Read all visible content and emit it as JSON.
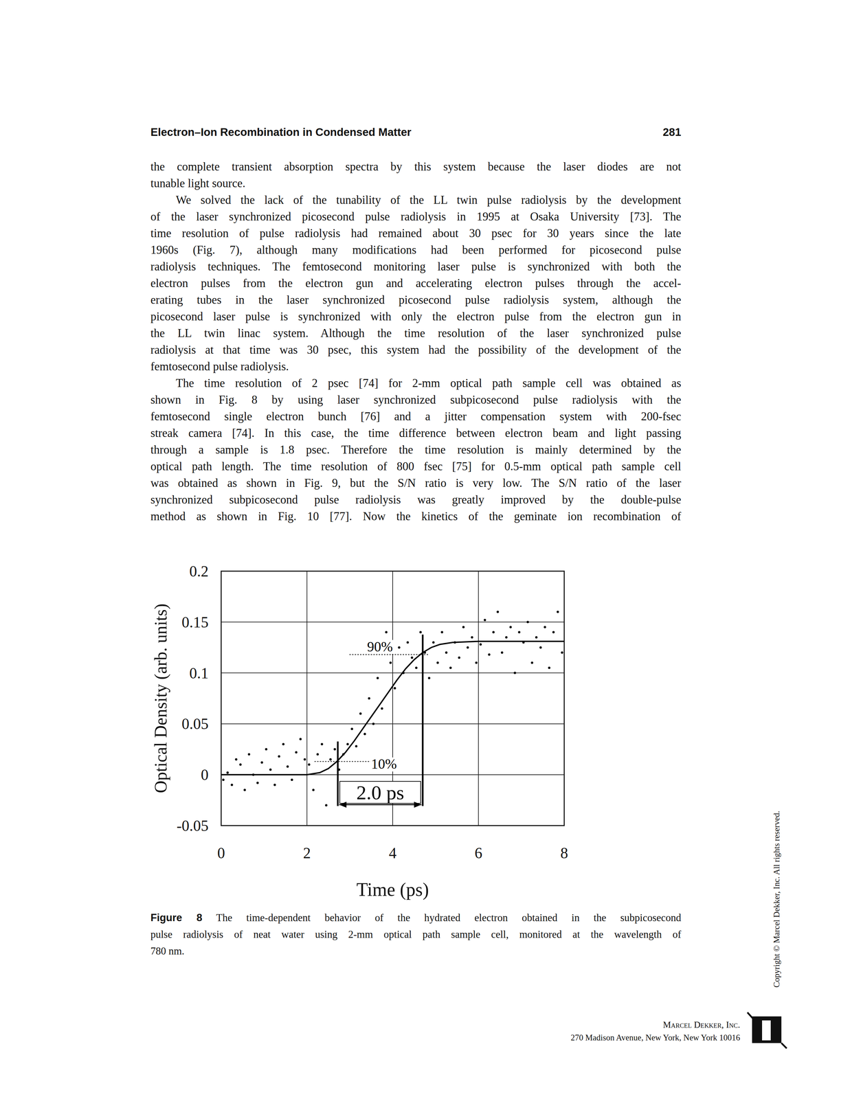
{
  "header": {
    "title": "Electron–Ion Recombination in Condensed Matter",
    "page_number": "281"
  },
  "body": {
    "continuation": [
      "the complete transient absorption spectra by this system because the laser diodes are not",
      "tunable light source."
    ],
    "paragraphs": [
      [
        "We solved the lack of the tunability of the LL twin pulse radiolysis by the development",
        "of the laser synchronized picosecond pulse radiolysis in 1995 at Osaka University [73]. The",
        "time resolution of pulse radiolysis had remained about 30 psec for 30 years since the late",
        "1960s (Fig. 7), although many modifications had been performed for picosecond pulse",
        "radiolysis techniques. The femtosecond monitoring laser pulse is synchronized with both the",
        "electron pulses from the electron gun and accelerating electron pulses through the accel-",
        "erating tubes in the laser synchronized picosecond pulse radiolysis system, although the",
        "picosecond laser pulse is synchronized with only the electron pulse from the electron gun in",
        "the LL twin linac system. Although the time resolution of the laser synchronized pulse",
        "radiolysis at that time was 30 psec, this system had the possibility of the development of the",
        "femtosecond pulse radiolysis."
      ],
      [
        "The time resolution of 2 psec [74] for 2-mm optical path sample cell was obtained as",
        "shown in Fig. 8 by using laser synchronized subpicosecond pulse radiolysis with the",
        "femtosecond single electron bunch [76] and a jitter compensation system with 200-fsec",
        "streak camera [74]. In this case, the time difference between electron beam and light passing",
        "through a sample is 1.8 psec. Therefore the time resolution is mainly determined by the",
        "optical path length. The time resolution of 800 fsec [75] for 0.5-mm optical path sample cell",
        "was obtained as shown in Fig. 9, but the S/N ratio is very low. The S/N ratio of the laser",
        "synchronized subpicosecond pulse radiolysis was greatly improved by the double-pulse",
        "method as shown in Fig. 10 [77]. Now the kinetics of the geminate ion recombination of"
      ]
    ]
  },
  "chart_data": {
    "type": "scatter",
    "xlabel": "Time (ps)",
    "ylabel": "Optical Density (arb. units)",
    "xlim": [
      0,
      8
    ],
    "ylim": [
      -0.05,
      0.2
    ],
    "xticks": [
      0,
      2,
      4,
      6,
      8
    ],
    "yticks": [
      -0.05,
      0,
      0.05,
      0.1,
      0.15,
      0.2
    ],
    "grid": true,
    "series": [
      {
        "type": "scatter",
        "color": "#000000",
        "marker": "dot",
        "x": [
          0.05,
          0.15,
          0.25,
          0.35,
          0.45,
          0.55,
          0.65,
          0.75,
          0.85,
          0.95,
          1.05,
          1.15,
          1.25,
          1.35,
          1.45,
          1.55,
          1.65,
          1.75,
          1.85,
          1.95,
          2.05,
          2.15,
          2.25,
          2.35,
          2.45,
          2.55,
          2.65,
          2.75,
          2.85,
          2.95,
          3.05,
          3.15,
          3.25,
          3.35,
          3.45,
          3.55,
          3.65,
          3.75,
          3.85,
          3.95,
          4.05,
          4.15,
          4.25,
          4.35,
          4.45,
          4.55,
          4.65,
          4.75,
          4.85,
          4.95,
          5.05,
          5.15,
          5.25,
          5.35,
          5.45,
          5.55,
          5.65,
          5.75,
          5.85,
          5.95,
          6.05,
          6.15,
          6.25,
          6.35,
          6.45,
          6.55,
          6.65,
          6.75,
          6.85,
          6.95,
          7.05,
          7.15,
          7.25,
          7.35,
          7.45,
          7.55,
          7.65,
          7.75,
          7.85,
          7.95
        ],
        "values": [
          -0.005,
          0.002,
          -0.01,
          0.015,
          0.01,
          -0.015,
          0.02,
          0.0,
          -0.008,
          0.012,
          0.025,
          0.005,
          -0.01,
          0.018,
          0.03,
          0.008,
          -0.005,
          0.022,
          0.035,
          0.015,
          0.01,
          -0.015,
          0.02,
          0.03,
          -0.03,
          0.015,
          0.025,
          0.005,
          0.02,
          0.03,
          0.045,
          0.028,
          0.06,
          0.04,
          0.075,
          0.05,
          0.095,
          0.065,
          0.14,
          0.11,
          0.085,
          0.125,
          0.1,
          0.13,
          0.115,
          0.105,
          0.14,
          0.12,
          0.095,
          0.13,
          0.11,
          0.14,
          0.12,
          0.105,
          0.13,
          0.115,
          0.145,
          0.125,
          0.135,
          0.11,
          0.128,
          0.152,
          0.118,
          0.14,
          0.16,
          0.12,
          0.135,
          0.145,
          0.1,
          0.14,
          0.13,
          0.15,
          0.11,
          0.135,
          0.125,
          0.145,
          0.105,
          0.14,
          0.16,
          0.12
        ]
      },
      {
        "type": "line",
        "color": "#000000",
        "line_style": "solid",
        "x": [
          0,
          1,
          2,
          2.3,
          2.5,
          2.7,
          2.9,
          3.1,
          3.3,
          3.5,
          3.7,
          3.9,
          4.1,
          4.3,
          4.5,
          4.7,
          4.9,
          5.1,
          5.4,
          6,
          7,
          8
        ],
        "values": [
          0,
          0,
          0,
          0.002,
          0.006,
          0.013,
          0.022,
          0.033,
          0.045,
          0.057,
          0.069,
          0.081,
          0.093,
          0.104,
          0.113,
          0.12,
          0.125,
          0.128,
          0.13,
          0.131,
          0.131,
          0.131
        ]
      }
    ],
    "thresholds": [
      {
        "label": "10%",
        "x": 2.72,
        "y": 0.013
      },
      {
        "label": "90%",
        "x": 4.7,
        "y": 0.118
      }
    ],
    "rise_time": {
      "label": "2.0 ps",
      "from": 2.72,
      "to": 4.7
    }
  },
  "caption": {
    "label": "Figure 8",
    "lines": [
      "The time-dependent behavior of the hydrated electron obtained in the subpicosecond",
      "pulse radiolysis of neat water using 2-mm optical path sample cell, monitored at the wavelength of",
      "780 nm."
    ]
  },
  "copyright": "Copyright © Marcel Dekker, Inc. All rights reserved.",
  "publisher": {
    "name": "Marcel Dekker, Inc.",
    "address": "270 Madison Avenue, New York, New York 10016"
  }
}
